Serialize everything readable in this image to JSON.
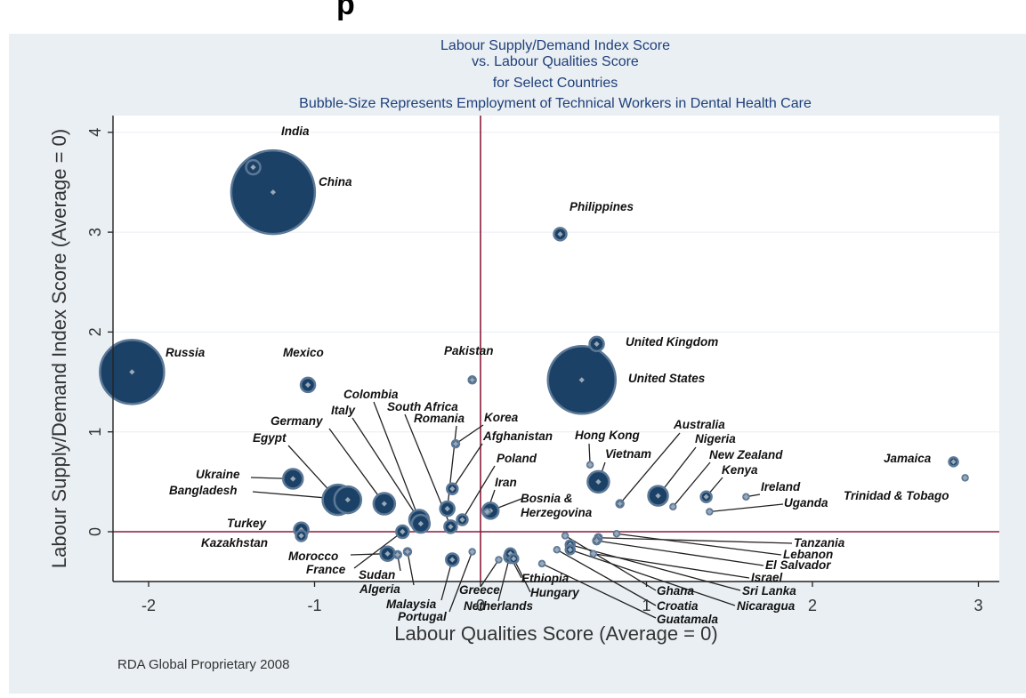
{
  "header": {
    "heading_fragment": "p"
  },
  "chart_data": {
    "type": "scatter",
    "bubble_size_encodes": "Employment of Technical Workers in Dental Health Care",
    "title_lines": [
      "Labour Supply/Demand Index Score",
      "vs. Labour Qualities Score",
      "for Select Countries",
      "Bubble-Size Represents Employment of Technical Workers in Dental Health Care"
    ],
    "xlabel": "Labour Qualities Score (Average = 0)",
    "ylabel": "Labour Supply/Demand Index Score (Average = 0)",
    "xlim": [
      -2.2,
      3.1
    ],
    "ylim": [
      -0.48,
      4.15
    ],
    "xticks": [
      -2,
      -1,
      0,
      1,
      2,
      3
    ],
    "yticks": [
      0,
      1,
      2,
      3,
      4
    ],
    "reference_lines": {
      "x": 0,
      "y": 0
    },
    "grid": "horizontal",
    "colors": {
      "bubble": "#1b4266",
      "bubble_edge": "#5c7896",
      "reference_line": "#8b1a3a",
      "plot_bg": "#ffffff",
      "frame_bg": "#e9eff3"
    },
    "points": [
      {
        "name": "India",
        "x": -1.37,
        "y": 3.65,
        "size": 8
      },
      {
        "name": "China",
        "x": -1.25,
        "y": 3.4,
        "size": 47
      },
      {
        "name": "Philippines",
        "x": 0.48,
        "y": 2.98,
        "size": 7
      },
      {
        "name": "United Kingdom",
        "x": 0.7,
        "y": 1.88,
        "size": 8
      },
      {
        "name": "United States",
        "x": 0.61,
        "y": 1.52,
        "size": 38
      },
      {
        "name": "Russia",
        "x": -2.1,
        "y": 1.6,
        "size": 36
      },
      {
        "name": "Mexico",
        "x": -1.04,
        "y": 1.47,
        "size": 8
      },
      {
        "name": "Pakistan",
        "x": -0.05,
        "y": 1.52,
        "size": 4
      },
      {
        "name": "Korea",
        "x": -0.15,
        "y": 0.88,
        "size": 4
      },
      {
        "name": "Afghanistan",
        "x": -0.17,
        "y": 0.43,
        "size": 6
      },
      {
        "name": "Poland",
        "x": -0.11,
        "y": 0.12,
        "size": 6
      },
      {
        "name": "Romania",
        "x": -0.2,
        "y": 0.23,
        "size": 8
      },
      {
        "name": "South Africa",
        "x": -0.18,
        "y": 0.05,
        "size": 7
      },
      {
        "name": "Colombia",
        "x": -0.36,
        "y": 0.08,
        "size": 10
      },
      {
        "name": "Italy",
        "x": -0.37,
        "y": 0.12,
        "size": 11
      },
      {
        "name": "Germany",
        "x": -0.58,
        "y": 0.28,
        "size": 12
      },
      {
        "name": "Egypt",
        "x": -0.86,
        "y": 0.32,
        "size": 17
      },
      {
        "name": "Ukraine",
        "x": -1.13,
        "y": 0.53,
        "size": 11
      },
      {
        "name": "Bangladesh",
        "x": -0.8,
        "y": 0.32,
        "size": 15
      },
      {
        "name": "Turkey",
        "x": -1.08,
        "y": 0.02,
        "size": 8
      },
      {
        "name": "Kazakhstan",
        "x": -1.08,
        "y": -0.04,
        "size": 6
      },
      {
        "name": "Morocco",
        "x": -0.56,
        "y": -0.22,
        "size": 8
      },
      {
        "name": "France",
        "x": -0.47,
        "y": 0.0,
        "size": 7
      },
      {
        "name": "Sudan",
        "x": -0.5,
        "y": -0.23,
        "size": 4
      },
      {
        "name": "Algeria",
        "x": -0.44,
        "y": -0.2,
        "size": 4
      },
      {
        "name": "Malaysia",
        "x": -0.17,
        "y": -0.28,
        "size": 7
      },
      {
        "name": "Portugal",
        "x": -0.05,
        "y": -0.2,
        "size": 3
      },
      {
        "name": "Greece",
        "x": 0.11,
        "y": -0.28,
        "size": 3
      },
      {
        "name": "Netherlands",
        "x": 0.18,
        "y": -0.22,
        "size": 6
      },
      {
        "name": "Ethiopia",
        "x": 0.18,
        "y": -0.25,
        "size": 7
      },
      {
        "name": "Hungary",
        "x": 0.2,
        "y": -0.27,
        "size": 5
      },
      {
        "name": "Iran",
        "x": 0.04,
        "y": 0.2,
        "size": 3
      },
      {
        "name": "Bosnia & Herzegovina",
        "x": 0.06,
        "y": 0.21,
        "size": 9
      },
      {
        "name": "Hong Kong",
        "x": 0.66,
        "y": 0.67,
        "size": 3
      },
      {
        "name": "Vietnam",
        "x": 0.71,
        "y": 0.5,
        "size": 12
      },
      {
        "name": "Australia",
        "x": 0.84,
        "y": 0.28,
        "size": 4
      },
      {
        "name": "Nigeria",
        "x": 1.07,
        "y": 0.36,
        "size": 11
      },
      {
        "name": "New Zealand",
        "x": 1.16,
        "y": 0.25,
        "size": 3
      },
      {
        "name": "Kenya",
        "x": 1.36,
        "y": 0.35,
        "size": 6
      },
      {
        "name": "Ireland",
        "x": 1.6,
        "y": 0.35,
        "size": 3
      },
      {
        "name": "Uganda",
        "x": 1.38,
        "y": 0.2,
        "size": 3
      },
      {
        "name": "Jamaica",
        "x": 2.85,
        "y": 0.7,
        "size": 5
      },
      {
        "name": "Trinidad & Tobago",
        "x": 2.92,
        "y": 0.54,
        "size": 3
      },
      {
        "name": "Tanzania",
        "x": 0.71,
        "y": -0.06,
        "size": 4
      },
      {
        "name": "Lebanon",
        "x": 0.82,
        "y": -0.02,
        "size": 3
      },
      {
        "name": "El Salvador",
        "x": 0.7,
        "y": -0.09,
        "size": 4
      },
      {
        "name": "Israel",
        "x": 0.68,
        "y": -0.22,
        "size": 3
      },
      {
        "name": "Sri Lanka",
        "x": 0.54,
        "y": -0.13,
        "size": 5
      },
      {
        "name": "Nicaragua",
        "x": 0.54,
        "y": -0.18,
        "size": 5
      },
      {
        "name": "Ghana",
        "x": 0.51,
        "y": -0.04,
        "size": 3
      },
      {
        "name": "Croatia",
        "x": 0.46,
        "y": -0.18,
        "size": 3
      },
      {
        "name": "Guatamala",
        "x": 0.37,
        "y": -0.32,
        "size": 3
      }
    ]
  },
  "footer": {
    "note": "RDA Global Proprietary 2008"
  }
}
